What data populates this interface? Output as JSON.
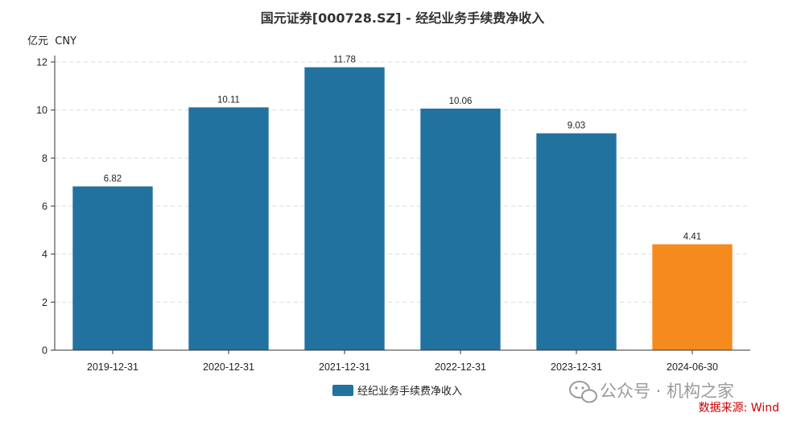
{
  "chart_data": {
    "type": "bar",
    "title": "国元证券[000728.SZ] - 经纪业务手续费净收入",
    "unit_label": "亿元  CNY",
    "categories": [
      "2019-12-31",
      "2020-12-31",
      "2021-12-31",
      "2022-12-31",
      "2023-12-31",
      "2024-06-30"
    ],
    "series": [
      {
        "name": "经纪业务手续费净收入",
        "values": [
          6.82,
          10.11,
          11.78,
          10.06,
          9.03,
          4.41
        ],
        "value_labels": [
          "6.82",
          "10.11",
          "11.78",
          "10.06",
          "9.03",
          "4.41"
        ],
        "color": "#2272a0",
        "highlight_color": "#f58a1f",
        "highlight_index": 5
      }
    ],
    "ylim": [
      0,
      12
    ],
    "yticks": [
      "0",
      "2",
      "4",
      "6",
      "8",
      "10",
      "12"
    ],
    "grid": true,
    "legend_position": "bottom-center"
  },
  "source_label": "数据来源: Wind",
  "watermark": {
    "text": "公众号 · 机构之家",
    "icon": "wechat-icon"
  }
}
